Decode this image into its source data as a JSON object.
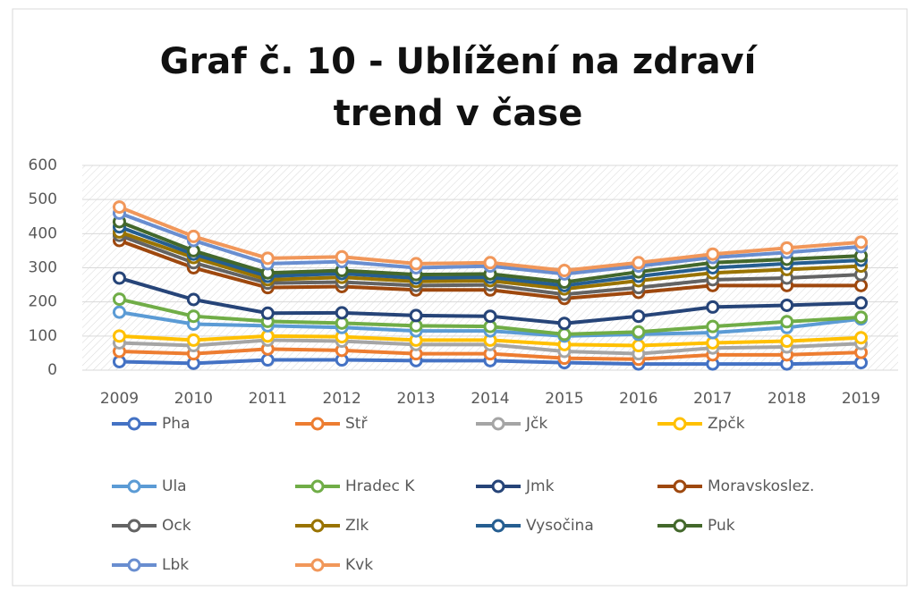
{
  "chart_data": {
    "type": "line",
    "title": "Graf č. 10 - Ublížení na zdraví trend v čase",
    "categories": [
      "2009",
      "2010",
      "2011",
      "2012",
      "2013",
      "2014",
      "2015",
      "2016",
      "2017",
      "2018",
      "2019"
    ],
    "ylim": [
      0,
      600
    ],
    "yticks": [
      0,
      100,
      200,
      300,
      400,
      500,
      600
    ],
    "grid": true,
    "legend": "bottom",
    "series": [
      {
        "name": "Pha",
        "color": "#4472c4",
        "values": [
          25,
          20,
          30,
          30,
          28,
          28,
          22,
          18,
          18,
          18,
          22
        ]
      },
      {
        "name": "Stř",
        "color": "#ed7d31",
        "values": [
          55,
          48,
          62,
          58,
          48,
          48,
          35,
          32,
          45,
          45,
          52
        ]
      },
      {
        "name": "Jčk",
        "color": "#a5a5a5",
        "values": [
          80,
          72,
          88,
          85,
          75,
          75,
          55,
          48,
          65,
          68,
          78
        ]
      },
      {
        "name": "Zpčk",
        "color": "#ffc000",
        "values": [
          100,
          88,
          100,
          98,
          88,
          88,
          75,
          72,
          80,
          85,
          95
        ]
      },
      {
        "name": "Ula",
        "color": "#5b9bd5",
        "values": [
          170,
          135,
          130,
          125,
          115,
          115,
          100,
          105,
          110,
          125,
          150
        ]
      },
      {
        "name": "Hradec K",
        "color": "#70ad47",
        "values": [
          208,
          158,
          143,
          138,
          130,
          128,
          105,
          112,
          128,
          142,
          155
        ]
      },
      {
        "name": "Jmk",
        "color": "#264478",
        "values": [
          270,
          207,
          167,
          168,
          160,
          158,
          137,
          158,
          185,
          190,
          197
        ]
      },
      {
        "name": "Moravskoslez.",
        "color": "#9e480e",
        "values": [
          380,
          300,
          242,
          245,
          235,
          235,
          210,
          228,
          248,
          248,
          248
        ]
      },
      {
        "name": "Ock",
        "color": "#636363",
        "values": [
          395,
          315,
          255,
          258,
          248,
          250,
          222,
          242,
          265,
          270,
          280
        ]
      },
      {
        "name": "Zlk",
        "color": "#997300",
        "values": [
          405,
          330,
          265,
          272,
          260,
          262,
          238,
          262,
          285,
          295,
          305
        ]
      },
      {
        "name": "Vysočina",
        "color": "#255e91",
        "values": [
          420,
          340,
          275,
          283,
          270,
          272,
          248,
          275,
          300,
          312,
          322
        ]
      },
      {
        "name": "Puk",
        "color": "#43682b",
        "values": [
          435,
          350,
          285,
          292,
          280,
          282,
          258,
          288,
          315,
          325,
          335
        ]
      },
      {
        "name": "Lbk",
        "color": "#698ed0",
        "values": [
          460,
          380,
          312,
          318,
          300,
          305,
          282,
          305,
          330,
          345,
          362
        ]
      },
      {
        "name": "Kvk",
        "color": "#f1975a",
        "values": [
          478,
          392,
          328,
          332,
          312,
          315,
          292,
          315,
          340,
          358,
          375
        ]
      }
    ]
  }
}
